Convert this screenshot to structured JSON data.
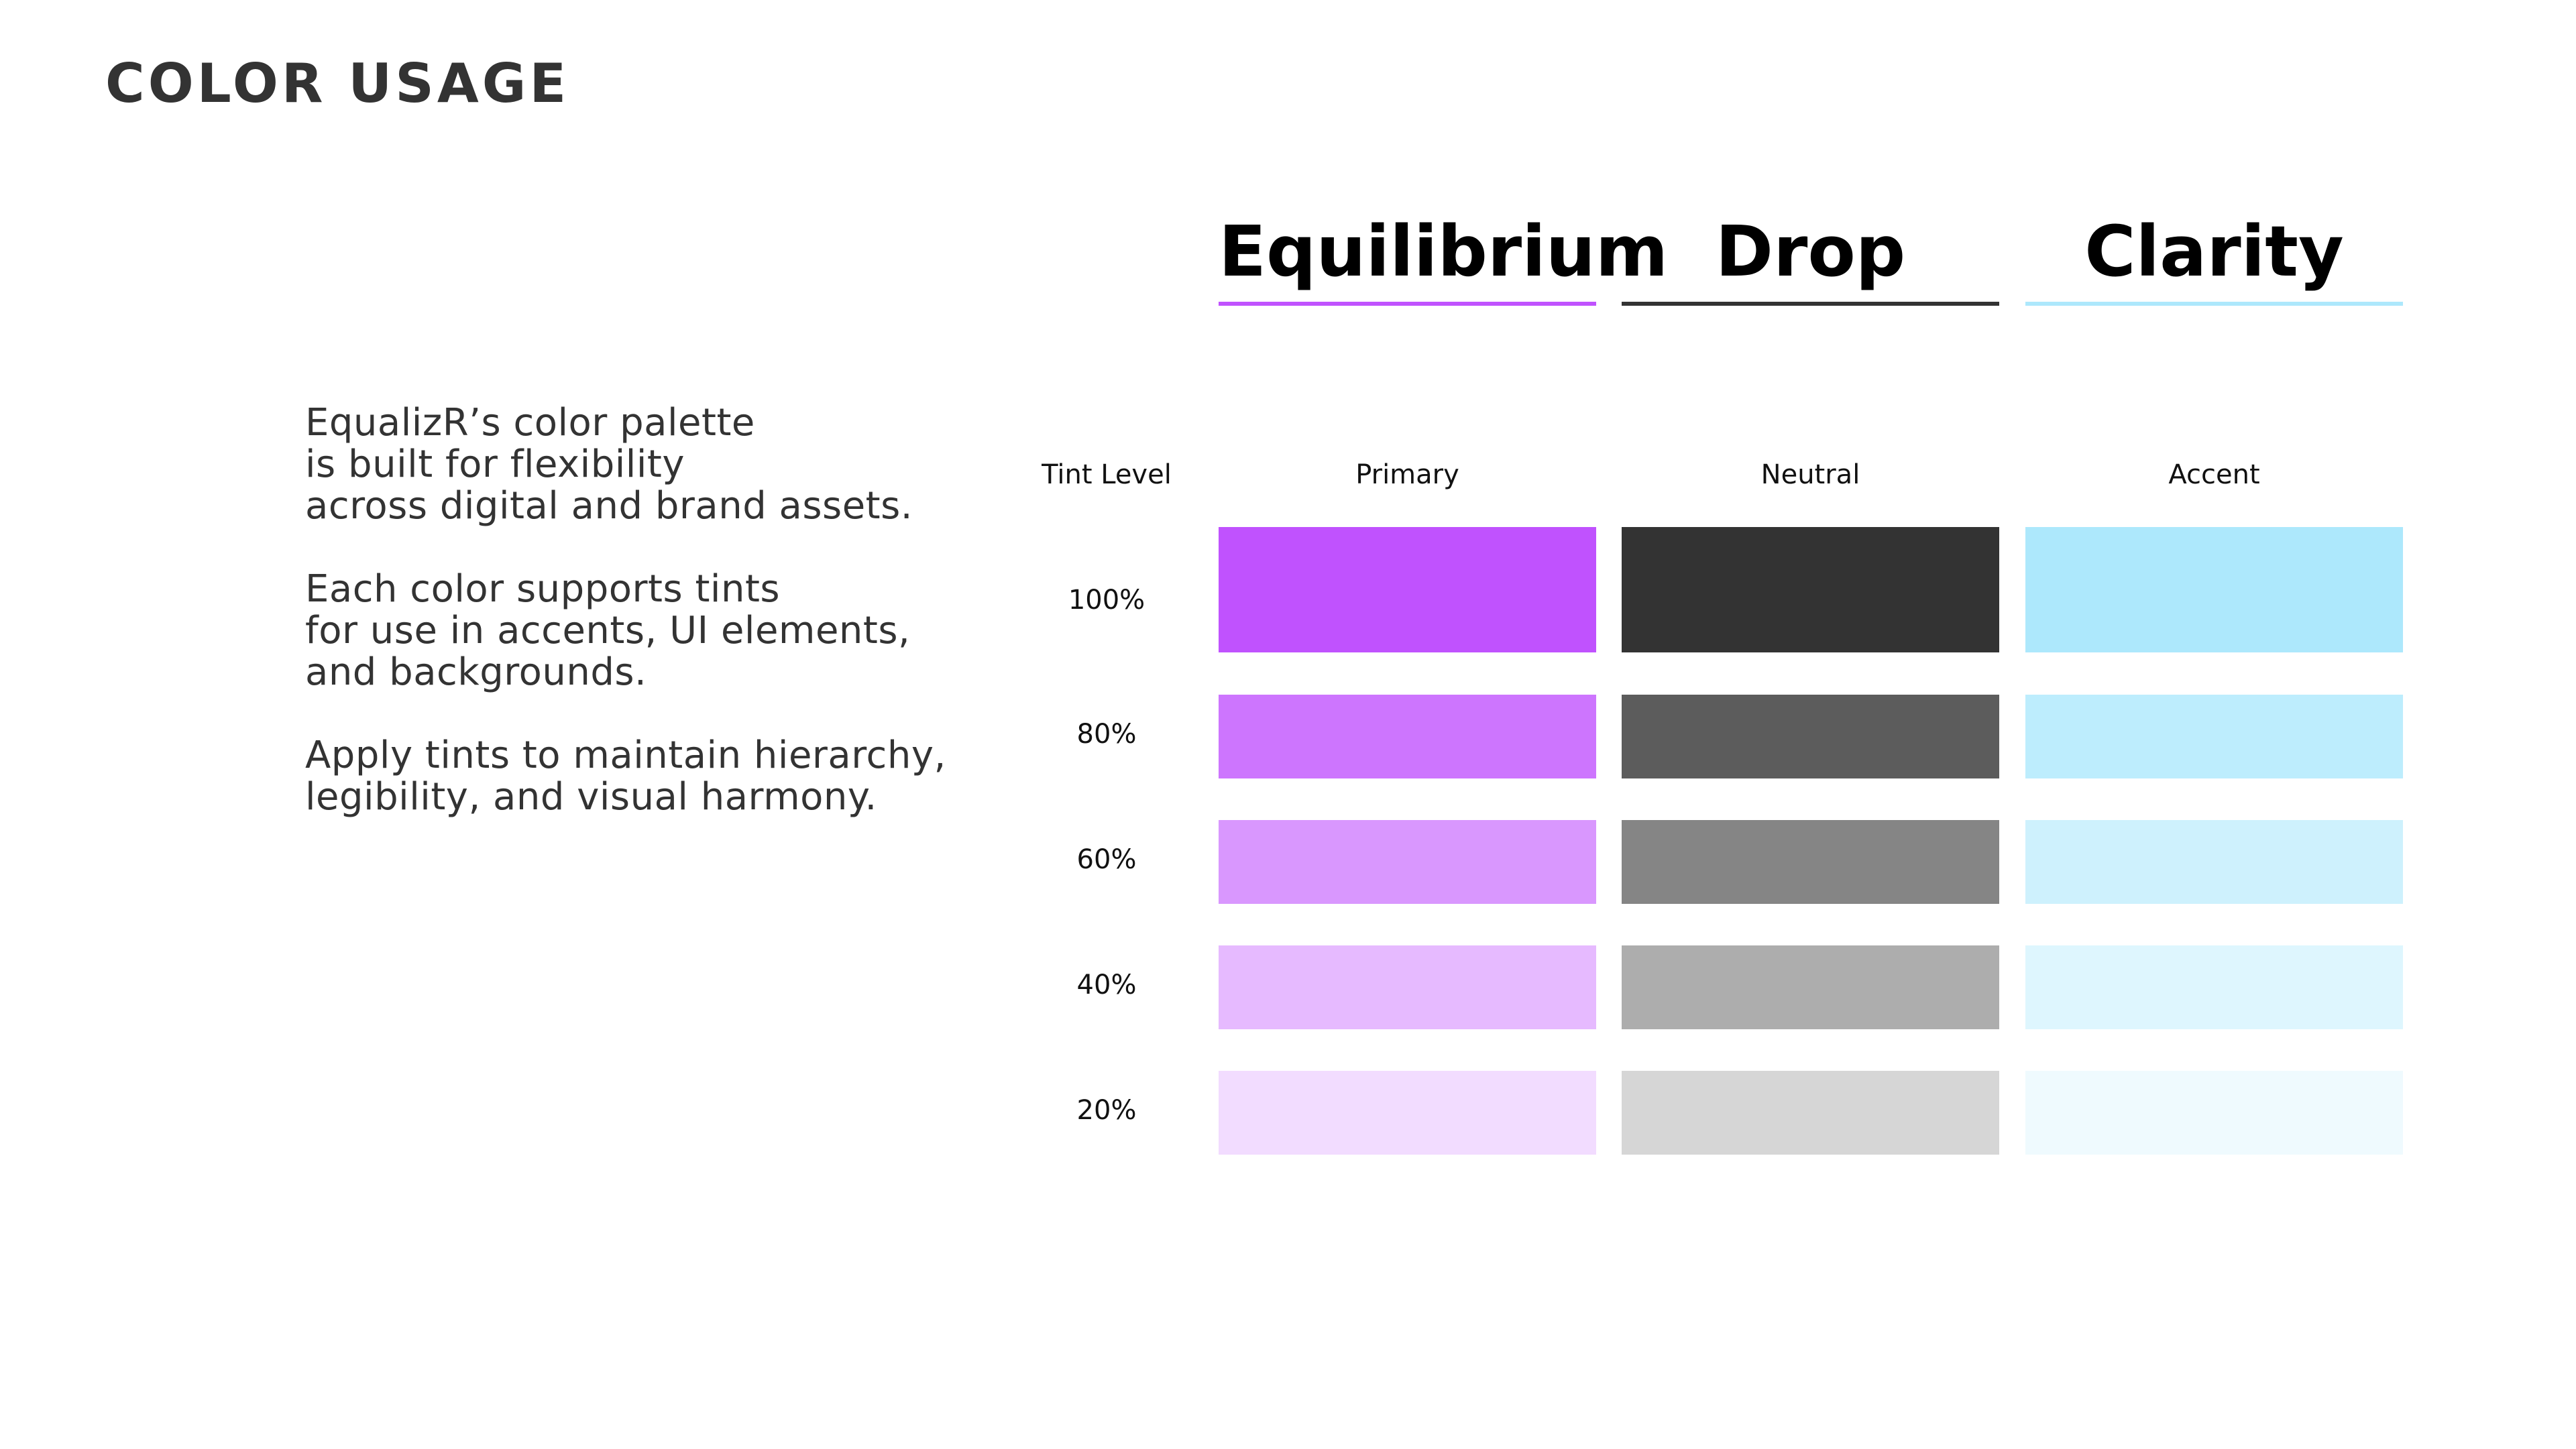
{
  "page": {
    "title": "COLOR USAGE"
  },
  "intro": {
    "paragraphs": [
      "EqualizR’s color palette\nis built for flexibility\nacross digital and brand assets.",
      "Each color supports tints\nfor use in accents, UI elements,\nand backgrounds.",
      "Apply tints to maintain hierarchy,\nlegibility, and visual harmony."
    ]
  },
  "table": {
    "tint_header": "Tint Level",
    "tint_levels": [
      "100%",
      "80%",
      "60%",
      "40%",
      "20%"
    ],
    "columns": [
      {
        "name": "Equilibrium",
        "role": "Primary",
        "underline_color": "#C052FE",
        "tints": [
          "#C052FE",
          "#CD75FE",
          "#D997FE",
          "#E6BAFF",
          "#F2DCFF"
        ]
      },
      {
        "name": "Drop",
        "role": "Neutral",
        "underline_color": "#333333",
        "tints": [
          "#333333",
          "#5C5C5C",
          "#858585",
          "#ADADAD",
          "#D6D6D6"
        ]
      },
      {
        "name": "Clarity",
        "role": "Accent",
        "underline_color": "#ADE8FC",
        "tints": [
          "#ADE8FC",
          "#BDEDFD",
          "#CEF1FD",
          "#DEF6FE",
          "#EFFAFE"
        ]
      }
    ]
  }
}
